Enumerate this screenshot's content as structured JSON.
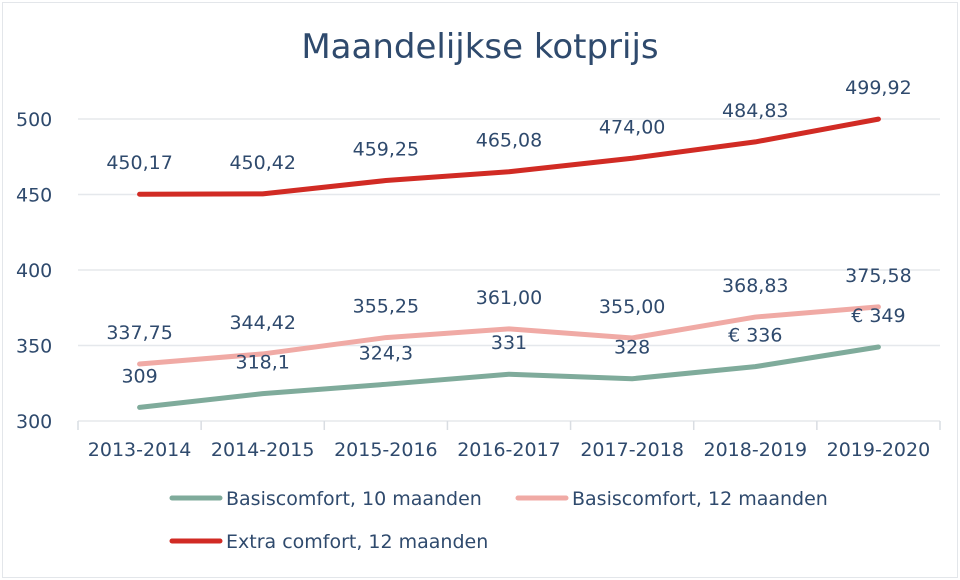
{
  "chart_data": {
    "type": "line",
    "title": "Maandelijkse kotprijs",
    "categories": [
      "2013-2014",
      "2014-2015",
      "2015-2016",
      "2016-2017",
      "2017-2018",
      "2018-2019",
      "2019-2020"
    ],
    "ylim": [
      300,
      500
    ],
    "yticks": [
      "300",
      "350",
      "400",
      "450",
      "500"
    ],
    "grid": true,
    "legend_position": "bottom",
    "series": [
      {
        "name": "Basiscomfort, 10 maanden",
        "color": "#7fab9b",
        "values": [
          309,
          318.1,
          324.3,
          331,
          328,
          336,
          349
        ],
        "labels": [
          "309",
          "318,1",
          "324,3",
          "331",
          "328",
          "€ 336",
          "€ 349"
        ]
      },
      {
        "name": "Basiscomfort, 12 maanden",
        "color": "#f0aaa5",
        "values": [
          337.75,
          344.42,
          355.25,
          361.0,
          355.0,
          368.83,
          375.58
        ],
        "labels": [
          "337,75",
          "344,42",
          "355,25",
          "361,00",
          "355,00",
          "368,83",
          "375,58"
        ]
      },
      {
        "name": "Extra comfort, 12 maanden",
        "color": "#d12b24",
        "values": [
          450.17,
          450.42,
          459.25,
          465.08,
          474.0,
          484.83,
          499.92
        ],
        "labels": [
          "450,17",
          "450,42",
          "459,25",
          "465,08",
          "474,00",
          "484,83",
          "499,92"
        ]
      }
    ]
  }
}
